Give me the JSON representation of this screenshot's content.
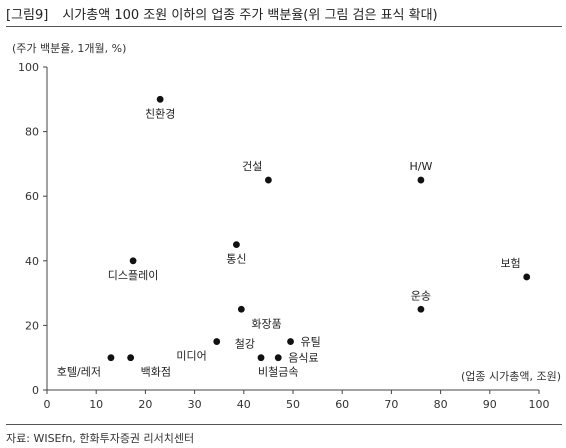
{
  "header": {
    "tag": "[그림9]",
    "title": "시가총액 100 조원 이하의 업종 주가 백분율(위 그림 검은 표식 확대)"
  },
  "source": "자료: WISEfn, 한화투자증권 리서치센터",
  "chart_data": {
    "type": "scatter",
    "ylabel": "(주가 백분율, 1개월, %)",
    "xlabel": "(업종 시가총액, 조원)",
    "xlim": [
      0,
      100
    ],
    "ylim": [
      0,
      100
    ],
    "xticks": [
      0,
      10,
      20,
      30,
      40,
      50,
      60,
      70,
      80,
      90,
      100
    ],
    "yticks": [
      0,
      20,
      40,
      60,
      80,
      100
    ],
    "grid": false,
    "marker_color": "#111111",
    "points": [
      {
        "label": "친환경",
        "x": 23,
        "y": 90,
        "pos": "below"
      },
      {
        "label": "건설",
        "x": 45,
        "y": 65,
        "pos": "upper-left"
      },
      {
        "label": "H/W",
        "x": 76,
        "y": 65,
        "pos": "above"
      },
      {
        "label": "통신",
        "x": 38.5,
        "y": 45,
        "pos": "below"
      },
      {
        "label": "디스플레이",
        "x": 17.5,
        "y": 40,
        "pos": "below"
      },
      {
        "label": "보험",
        "x": 97.5,
        "y": 35,
        "pos": "upper-left"
      },
      {
        "label": "운송",
        "x": 76,
        "y": 25,
        "pos": "above"
      },
      {
        "label": "화장품",
        "x": 39.5,
        "y": 25,
        "pos": "lower-right"
      },
      {
        "label": "미디어",
        "x": 34.5,
        "y": 15,
        "pos": "lower-left"
      },
      {
        "label": "유틸",
        "x": 49.5,
        "y": 15,
        "pos": "right"
      },
      {
        "label": "철강",
        "x": 43.5,
        "y": 10,
        "pos": "upper-left"
      },
      {
        "label": "비철금속",
        "x": 47,
        "y": 10,
        "pos": "below"
      },
      {
        "label": "음식료",
        "x": 47,
        "y": 10,
        "pos": "right"
      },
      {
        "label": "호텔/레저",
        "x": 13,
        "y": 10,
        "pos": "lower-left"
      },
      {
        "label": "백화점",
        "x": 17,
        "y": 10,
        "pos": "lower-right"
      }
    ]
  }
}
